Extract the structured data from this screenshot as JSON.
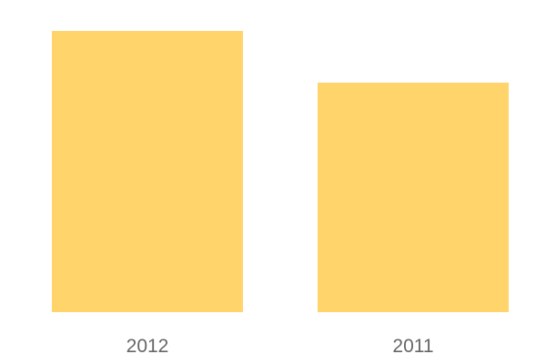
{
  "chart_data": {
    "type": "bar",
    "categories": [
      "2012",
      "2011"
    ],
    "values": [
      100,
      81.6
    ],
    "ylim": [
      0,
      100
    ],
    "grid": false,
    "bar_color": "#FFD56B",
    "label_color": "#666666"
  }
}
